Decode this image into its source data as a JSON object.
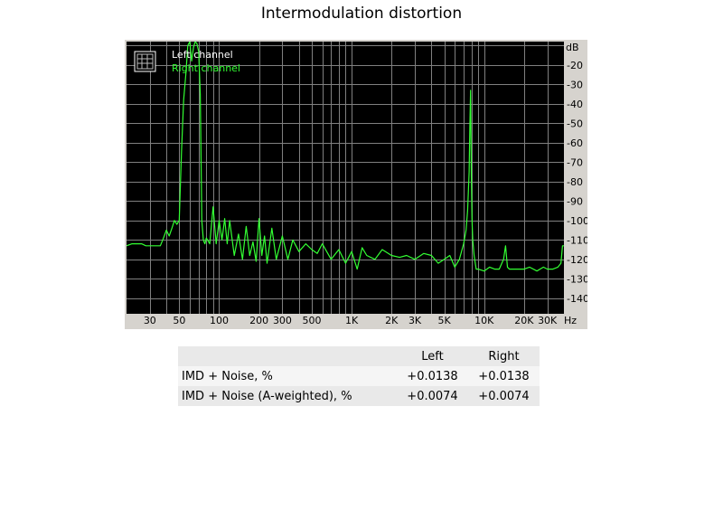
{
  "title": "Intermodulation distortion",
  "chart_data": {
    "type": "line",
    "xscale": "log",
    "xlim": [
      20,
      40000
    ],
    "ylim": [
      -148,
      -8
    ],
    "grid": true,
    "legend_position": "top-left",
    "y_unit_label": "dB",
    "x_unit_label": "Hz",
    "y_ticks": [
      -20,
      -30,
      -40,
      -50,
      -60,
      -70,
      -80,
      -90,
      -100,
      -110,
      -120,
      -130,
      -140
    ],
    "x_ticks": [
      {
        "value": 30,
        "label": "30"
      },
      {
        "value": 50,
        "label": "50"
      },
      {
        "value": 100,
        "label": "100"
      },
      {
        "value": 200,
        "label": "200"
      },
      {
        "value": 300,
        "label": "300"
      },
      {
        "value": 500,
        "label": "500"
      },
      {
        "value": 1000,
        "label": "1K"
      },
      {
        "value": 2000,
        "label": "2K"
      },
      {
        "value": 3000,
        "label": "3K"
      },
      {
        "value": 5000,
        "label": "5K"
      },
      {
        "value": 10000,
        "label": "10K"
      },
      {
        "value": 20000,
        "label": "20K"
      },
      {
        "value": 30000,
        "label": "30K"
      }
    ],
    "background": "#000000",
    "grid_color": "#808080",
    "series": [
      {
        "name": "Left channel",
        "color": "#ffffff",
        "values": []
      },
      {
        "name": "Right channel",
        "color": "#33ff33",
        "x": [
          20,
          22,
          24,
          26,
          28,
          30,
          32,
          34,
          36,
          38,
          40,
          42,
          44,
          46,
          48,
          50,
          52,
          54,
          56,
          58,
          60,
          62,
          64,
          66,
          68,
          70,
          72,
          74,
          76,
          78,
          80,
          85,
          90,
          95,
          100,
          105,
          110,
          115,
          120,
          130,
          140,
          150,
          160,
          170,
          180,
          190,
          200,
          210,
          220,
          230,
          250,
          270,
          300,
          330,
          360,
          400,
          450,
          500,
          550,
          600,
          700,
          800,
          900,
          1000,
          1100,
          1200,
          1300,
          1500,
          1700,
          2000,
          2300,
          2600,
          3000,
          3500,
          4000,
          4500,
          5000,
          5500,
          6000,
          6500,
          7000,
          7300,
          7500,
          7700,
          7800,
          7900,
          8000,
          8100,
          8200,
          8400,
          8700,
          9000,
          10000,
          11000,
          12000,
          13000,
          14000,
          14500,
          15000,
          15500,
          16000,
          18000,
          20000,
          22000,
          25000,
          28000,
          30000,
          33000,
          36000,
          38000,
          39000,
          40000
        ],
        "values": [
          -113,
          -112,
          -112,
          -112,
          -113,
          -113,
          -113,
          -113,
          -113,
          -109,
          -105,
          -108,
          -104,
          -100,
          -102,
          -100,
          -65,
          -38,
          -25,
          -10,
          -8,
          -18,
          -11,
          -8,
          -9,
          -13,
          -35,
          -100,
          -110,
          -112,
          -109,
          -112,
          -93,
          -112,
          -100,
          -110,
          -99,
          -112,
          -100,
          -118,
          -107,
          -120,
          -103,
          -118,
          -111,
          -121,
          -99,
          -118,
          -108,
          -122,
          -104,
          -120,
          -108,
          -120,
          -110,
          -116,
          -112,
          -115,
          -117,
          -112,
          -120,
          -115,
          -122,
          -116,
          -125,
          -114,
          -118,
          -120,
          -115,
          -118,
          -119,
          -118,
          -120,
          -117,
          -118,
          -122,
          -120,
          -118,
          -124,
          -120,
          -112,
          -105,
          -95,
          -75,
          -52,
          -33,
          -75,
          -100,
          -110,
          -118,
          -125,
          -125,
          -126,
          -124,
          -125,
          -125,
          -120,
          -113,
          -124,
          -125,
          -125,
          -125,
          -125,
          -124,
          -126,
          -124,
          -125,
          -125,
          -124,
          -122,
          -113,
          -113
        ]
      }
    ]
  },
  "results_table": {
    "header": [
      "",
      "Left",
      "Right"
    ],
    "rows": [
      {
        "label": "IMD + Noise, %",
        "left": "+0.0138",
        "right": "+0.0138"
      },
      {
        "label": "IMD + Noise (A-weighted), %",
        "left": "+0.0074",
        "right": "+0.0074"
      }
    ]
  }
}
